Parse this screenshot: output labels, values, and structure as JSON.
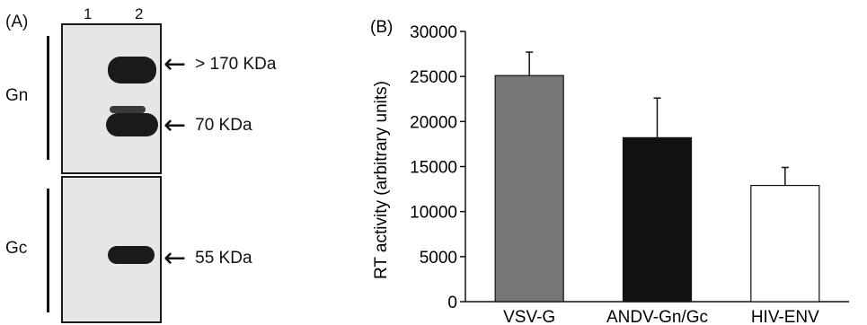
{
  "blot": {
    "panel_label": "(A)",
    "lanes": [
      "1",
      "2"
    ],
    "groups": [
      {
        "label": "Gn"
      },
      {
        "label": "Gc"
      }
    ],
    "markers": [
      {
        "text": "> 170 KDa"
      },
      {
        "text": "70 KDa"
      },
      {
        "text": "55 KDa"
      }
    ],
    "arrow_glyph": "←"
  },
  "chart_data": {
    "type": "bar",
    "panel_label": "(B)",
    "title": "",
    "xlabel": "",
    "ylabel": "RT activity (arbitrary units)",
    "categories": [
      "VSV-G",
      "ANDV-Gn/Gc",
      "HIV-ENV"
    ],
    "values": [
      25100,
      18200,
      12900
    ],
    "error": [
      2600,
      4400,
      2000
    ],
    "bar_colors": [
      "#777777",
      "#111111",
      "#ffffff"
    ],
    "ylim": [
      0,
      30000
    ],
    "yticks": [
      0,
      5000,
      10000,
      15000,
      20000,
      25000,
      30000
    ],
    "grid": false
  }
}
